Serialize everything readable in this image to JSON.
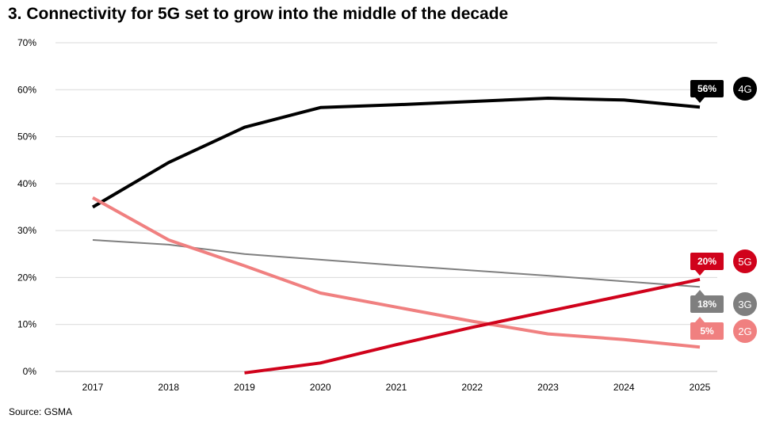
{
  "chart_data": {
    "type": "line",
    "title": "3. Connectivity for 5G set to grow into the middle of the decade",
    "source": "Source: GSMA",
    "x": [
      "2017",
      "2018",
      "2019",
      "2020",
      "2021",
      "2022",
      "2023",
      "2024",
      "2025"
    ],
    "ylim": [
      0,
      70
    ],
    "yticks": [
      0,
      10,
      20,
      30,
      40,
      50,
      60,
      70
    ],
    "y_tick_format": "%",
    "grid": true,
    "series": [
      {
        "name": "4G",
        "color": "#000000",
        "label_color": "#000000",
        "end_label": "56%",
        "values": [
          35,
          44.5,
          52,
          56.2,
          56.8,
          57.5,
          58.2,
          57.8,
          56.3
        ]
      },
      {
        "name": "3G",
        "color": "#7f7f7f",
        "label_color": "#7f7f7f",
        "end_label": "18%",
        "values": [
          28,
          27,
          25,
          23.8,
          22.6,
          21.5,
          20.4,
          19.2,
          18
        ]
      },
      {
        "name": "2G",
        "color": "#f08080",
        "label_color": "#f08080",
        "end_label": "5%",
        "values": [
          37,
          28,
          22.5,
          16.7,
          13.7,
          10.7,
          8,
          6.8,
          5.2
        ]
      },
      {
        "name": "5G",
        "color": "#d0021b",
        "label_color": "#d0021b",
        "end_label": "20%",
        "values": [
          null,
          null,
          -0.3,
          1.8,
          5.7,
          9.4,
          12.8,
          16.2,
          19.6
        ]
      }
    ]
  }
}
